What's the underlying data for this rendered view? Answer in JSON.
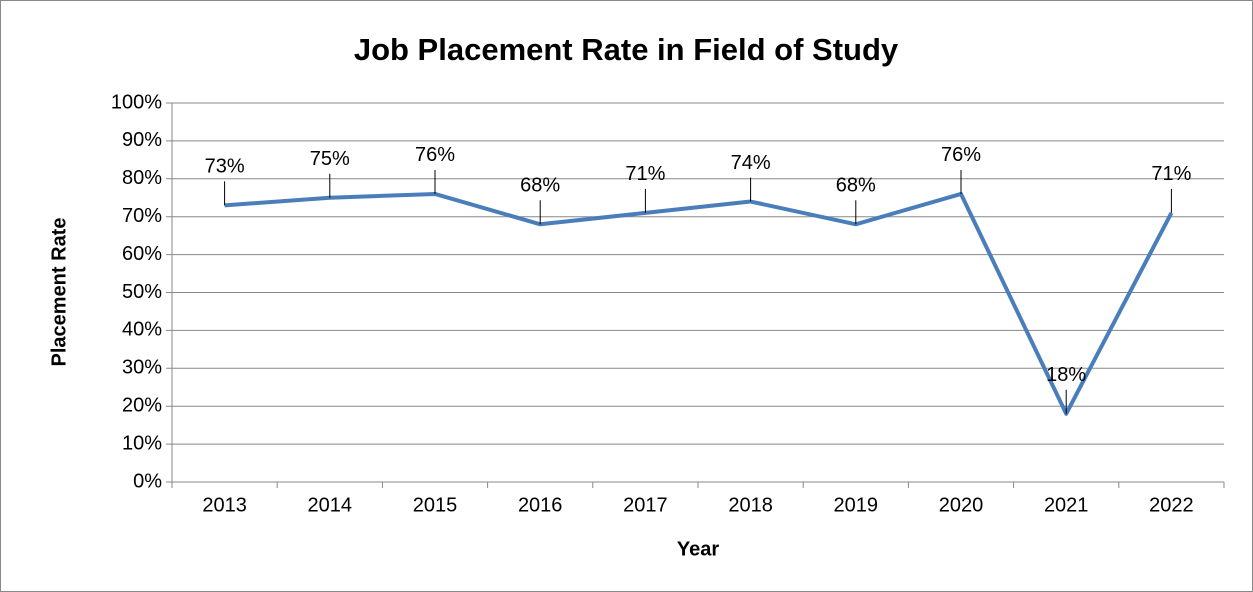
{
  "chart_data": {
    "type": "line",
    "title": "Job Placement Rate in Field of Study",
    "x_label": "Year",
    "y_label": "Placement Rate",
    "categories": [
      "2013",
      "2014",
      "2015",
      "2016",
      "2017",
      "2018",
      "2019",
      "2020",
      "2021",
      "2022"
    ],
    "series": [
      {
        "name": "Placement Rate",
        "color": "#4a7ebb",
        "values": [
          73,
          75,
          76,
          68,
          71,
          74,
          68,
          76,
          18,
          71
        ],
        "value_labels": [
          "73%",
          "75%",
          "76%",
          "68%",
          "71%",
          "74%",
          "68%",
          "76%",
          "18%",
          "71%"
        ]
      }
    ],
    "ylim": [
      0,
      100
    ],
    "yticks": [
      {
        "value": 0,
        "label": "0%"
      },
      {
        "value": 10,
        "label": "10%"
      },
      {
        "value": 20,
        "label": "20%"
      },
      {
        "value": 30,
        "label": "30%"
      },
      {
        "value": 40,
        "label": "40%"
      },
      {
        "value": 50,
        "label": "50%"
      },
      {
        "value": 60,
        "label": "60%"
      },
      {
        "value": 70,
        "label": "70%"
      },
      {
        "value": 80,
        "label": "80%"
      },
      {
        "value": 90,
        "label": "90%"
      },
      {
        "value": 100,
        "label": "100%"
      }
    ],
    "grid": true
  }
}
